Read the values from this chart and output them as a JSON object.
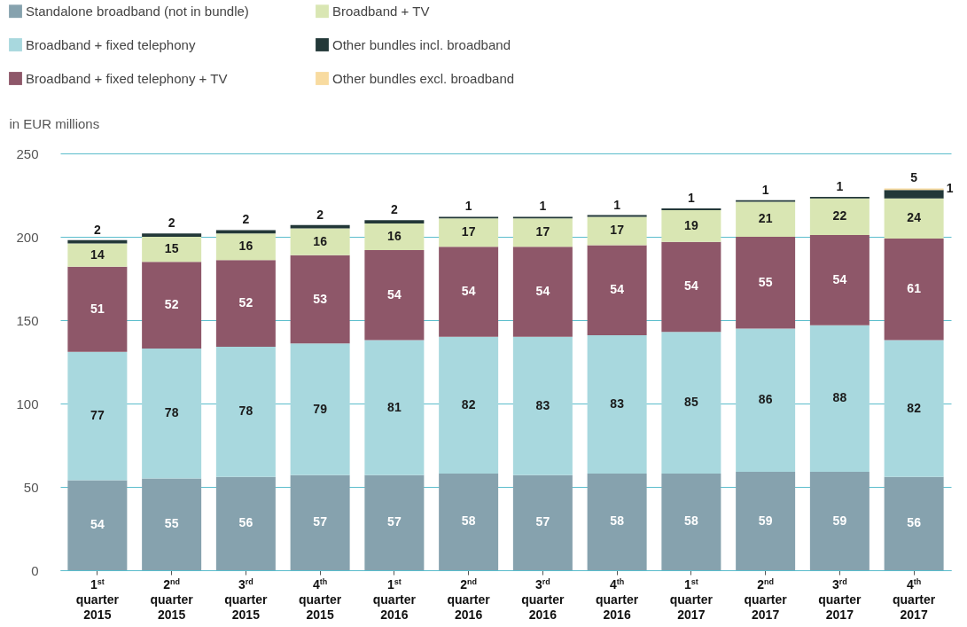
{
  "chart_data": {
    "type": "bar",
    "stacked": true,
    "ylabel": "in EUR millions",
    "categories": [
      "1$^{st}$ quarter 2015",
      "2$^{nd}$ quarter 2015",
      "3$^{rd}$ quarter 2015",
      "4$^{th}$ quarter 2015",
      "1$^{st}$ quarter 2016",
      "2$^{nd}$ quarter 2016",
      "3$^{rd}$ quarter 2016",
      "4$^{th}$ quarter 2016",
      "1$^{st}$ quarter 2017",
      "2$^{nd}$ quarter 2017",
      "3$^{rd}$ quarter 2017",
      "4$^{th}$ quarter 2017"
    ],
    "series": [
      {
        "name": "Standalone broadband (not in bundle)",
        "color": "#86a2ae",
        "values": [
          54,
          55,
          56,
          57,
          57,
          58,
          57,
          58,
          58,
          59,
          59,
          56
        ]
      },
      {
        "name": "Broadband + fixed telephony",
        "color": "#a8d8de",
        "values": [
          77,
          78,
          78,
          79,
          81,
          82,
          83,
          83,
          85,
          86,
          88,
          82
        ]
      },
      {
        "name": "Broadband + fixed telephony + TV",
        "color": "#8e5769",
        "values": [
          51,
          52,
          52,
          53,
          54,
          54,
          54,
          54,
          54,
          55,
          54,
          61
        ]
      },
      {
        "name": "Broadband + TV",
        "color": "#d9e6b3",
        "values": [
          14,
          15,
          16,
          16,
          16,
          17,
          17,
          17,
          19,
          21,
          22,
          24
        ]
      },
      {
        "name": "Other bundles incl. broadband",
        "color": "#233838",
        "values": [
          2,
          2,
          2,
          2,
          2,
          1,
          1,
          1,
          1,
          1,
          1,
          5
        ]
      },
      {
        "name": "Other bundles excl. broadband",
        "color": "#f8dba0",
        "values": [
          null,
          null,
          null,
          null,
          null,
          null,
          null,
          null,
          null,
          null,
          null,
          1
        ]
      }
    ],
    "ylim": [
      0,
      250
    ],
    "yticks": [
      0,
      50,
      100,
      150,
      200,
      250
    ],
    "grid": "y",
    "legend": "top left",
    "data_labels": true
  }
}
